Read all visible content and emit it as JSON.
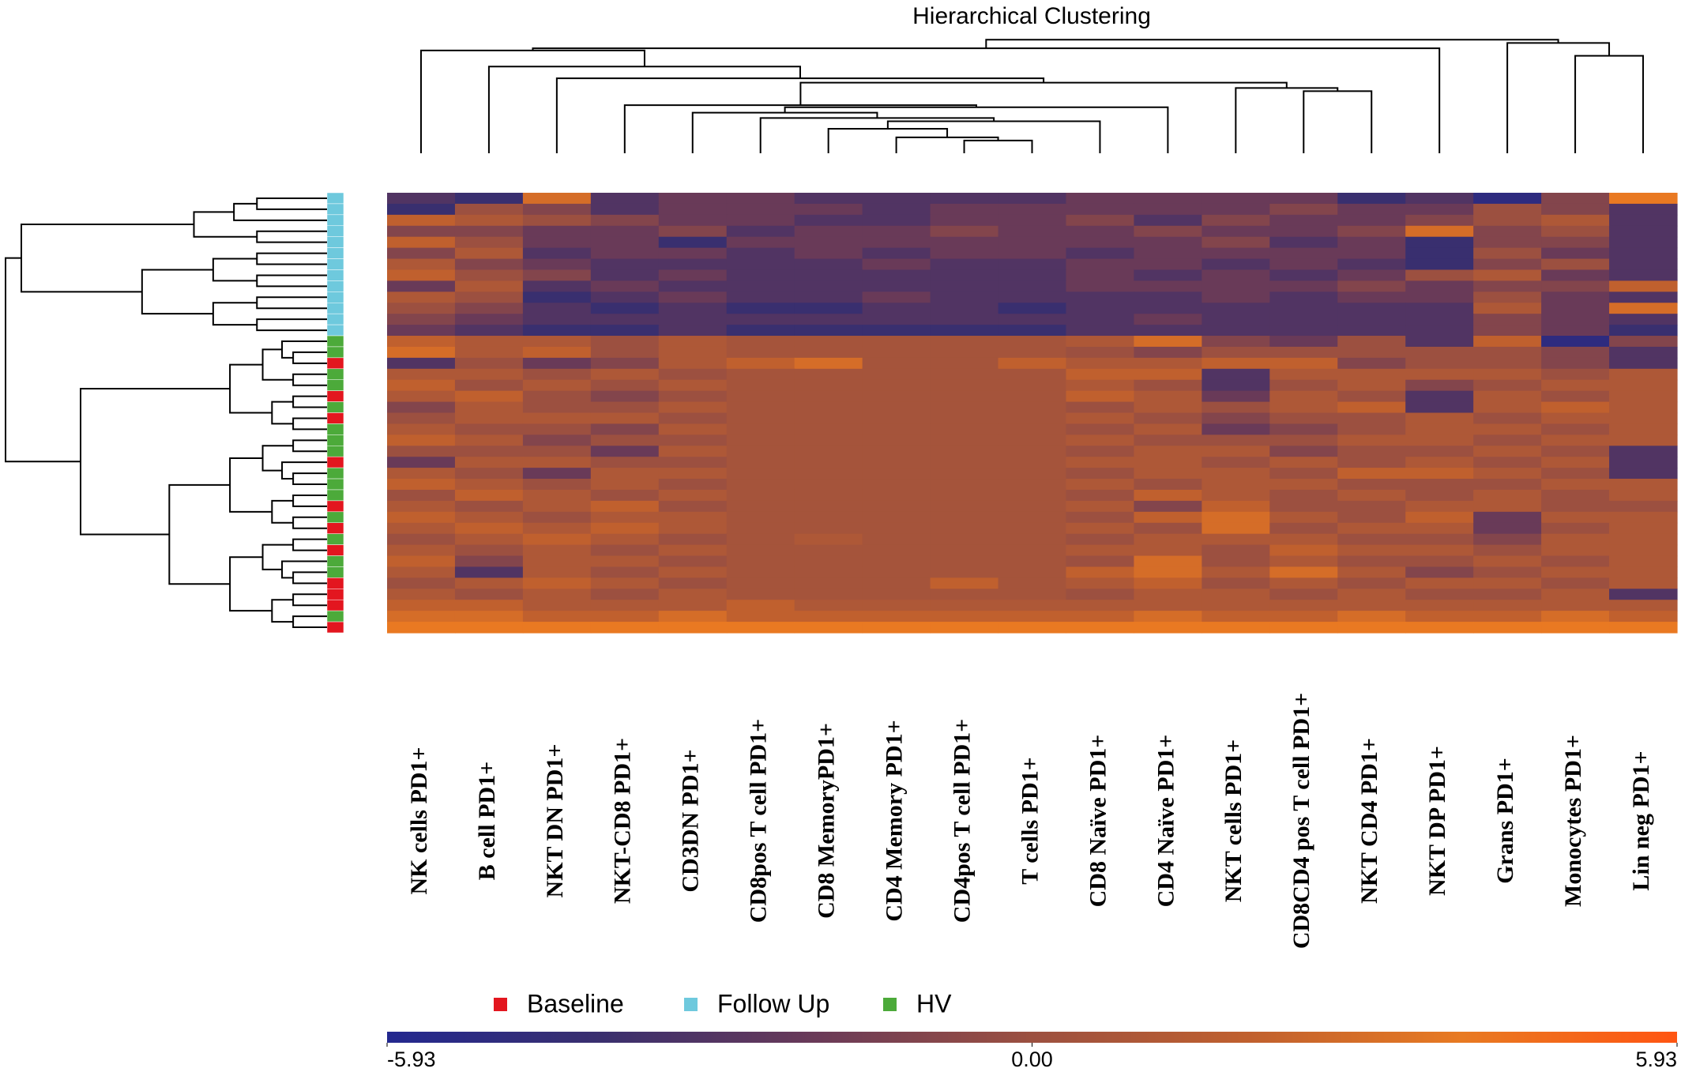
{
  "chart_data": {
    "type": "heatmap",
    "title": "Hierarchical Clustering",
    "categories": [
      "NK cells PD1+",
      "B cell PD1+",
      "NKT DN PD1+",
      "NKT-CD8 PD1+",
      "CD3DN PD1+",
      "CD8pos T cell PD1+",
      "CD8 MemoryPD1+",
      "CD4 Memory PD1+",
      "CD4pos T cell PD1+",
      "T cells PD1+",
      "CD8 Naïve PD1+",
      "CD4 Naïve PD1+",
      "NKT cells PD1+",
      "CD8CD4 pos T cell PD1+",
      "NKT CD4 PD1+",
      "NKT DP PD1+",
      "Grans PD1+",
      "Monocytes PD1+",
      "Lin neg PD1+"
    ],
    "legend": [
      {
        "name": "Baseline",
        "color": "#e3161f"
      },
      {
        "name": "Follow Up",
        "color": "#6ec9dd"
      },
      {
        "name": "HV",
        "color": "#4caa3a"
      }
    ],
    "row_groups": [
      1,
      1,
      1,
      1,
      1,
      1,
      1,
      1,
      1,
      1,
      1,
      1,
      1,
      2,
      2,
      0,
      2,
      2,
      0,
      2,
      0,
      2,
      2,
      2,
      0,
      2,
      2,
      2,
      0,
      2,
      0,
      2,
      0,
      2,
      2,
      0,
      0,
      0,
      2,
      0
    ],
    "values": [
      [
        -3,
        -4,
        3,
        -3,
        -2,
        -2,
        -3,
        -3,
        -3,
        -3,
        -2,
        -2,
        -2,
        -2,
        -4,
        -3,
        -5,
        -1,
        4
      ],
      [
        -4,
        0,
        -1,
        -3,
        -2,
        -2,
        -2,
        -3,
        -2,
        -2,
        -2,
        -2,
        -2,
        -1,
        -2,
        -2,
        0,
        -1,
        -3
      ],
      [
        2,
        1,
        0,
        -1,
        -2,
        -2,
        -3,
        -3,
        -2,
        -2,
        -1,
        -3,
        -1,
        -2,
        -2,
        -1,
        0,
        1,
        -3
      ],
      [
        -1,
        -1,
        -2,
        -2,
        -1,
        -3,
        -2,
        -2,
        -1,
        -2,
        -2,
        -1,
        -2,
        -2,
        -1,
        3,
        -1,
        0,
        -3
      ],
      [
        2,
        0,
        -2,
        -2,
        -4,
        -2,
        -2,
        -2,
        -2,
        -2,
        -2,
        -2,
        -1,
        -3,
        -2,
        -4,
        -1,
        -1,
        -3
      ],
      [
        -1,
        1,
        -3,
        -2,
        -2,
        -3,
        -2,
        -3,
        -2,
        -2,
        -3,
        -2,
        -2,
        -2,
        -2,
        -4,
        0,
        -2,
        -3
      ],
      [
        1,
        -1,
        -2,
        -3,
        -3,
        -3,
        -3,
        -2,
        -3,
        -3,
        -2,
        -2,
        -3,
        -2,
        -3,
        -4,
        -1,
        0,
        -3
      ],
      [
        2,
        0,
        -1,
        -3,
        -2,
        -3,
        -3,
        -3,
        -3,
        -3,
        -2,
        -3,
        -2,
        -3,
        -2,
        0,
        1,
        -2,
        -3
      ],
      [
        -2,
        1,
        -3,
        -2,
        -3,
        -3,
        -3,
        -3,
        -3,
        -3,
        -2,
        -2,
        -2,
        -2,
        -1,
        -2,
        -1,
        -1,
        2
      ],
      [
        1,
        0,
        -4,
        -3,
        -2,
        -3,
        -3,
        -2,
        -3,
        -3,
        -3,
        -3,
        -2,
        -3,
        -2,
        -2,
        0,
        -2,
        -3
      ],
      [
        0,
        -1,
        -3,
        -4,
        -3,
        -4,
        -4,
        -3,
        -3,
        -4,
        -3,
        -3,
        -3,
        -3,
        -3,
        -3,
        1,
        -2,
        3
      ],
      [
        -1,
        -2,
        -3,
        -3,
        -3,
        -3,
        -3,
        -3,
        -3,
        -3,
        -3,
        -2,
        -3,
        -3,
        -3,
        -3,
        -1,
        -2,
        -3
      ],
      [
        -2,
        -3,
        -4,
        -4,
        -3,
        -4,
        -4,
        -4,
        -4,
        -4,
        -3,
        -3,
        -3,
        -3,
        -3,
        -3,
        -1,
        -2,
        -4
      ],
      [
        2,
        1,
        1,
        0,
        1,
        0.5,
        0.5,
        0.5,
        0.5,
        0.5,
        1,
        3,
        -1,
        -2,
        0,
        -3,
        2,
        -5,
        -1
      ],
      [
        3,
        1,
        2,
        0,
        1,
        0.5,
        0.5,
        0.5,
        0.5,
        0.5,
        0,
        -1,
        0,
        0,
        0,
        0,
        0,
        -1,
        -3
      ],
      [
        -3,
        0,
        -2,
        -1,
        1,
        2,
        3,
        0.5,
        0.5,
        2,
        1,
        1,
        2,
        2,
        -1,
        0,
        0,
        -1,
        -3
      ],
      [
        1,
        1,
        0,
        1,
        0,
        0.5,
        0.5,
        0.5,
        0.5,
        0.5,
        2,
        2,
        -3,
        1,
        1,
        1,
        1,
        0,
        1
      ],
      [
        2,
        0,
        1,
        0,
        1,
        0.5,
        0.5,
        0.5,
        0.5,
        0.5,
        1,
        0,
        -3,
        0,
        1,
        -1,
        0,
        1,
        1
      ],
      [
        1,
        2,
        0,
        -1,
        0,
        0.5,
        0.5,
        0.5,
        0.5,
        0.5,
        2,
        1,
        -2,
        1,
        0,
        -3,
        1,
        0,
        1
      ],
      [
        -1,
        1,
        0,
        0,
        1,
        0.5,
        0.5,
        0.5,
        0.5,
        0.5,
        0,
        1,
        0,
        1,
        2,
        -3,
        1,
        2,
        1
      ],
      [
        0,
        1,
        1,
        1,
        0,
        0.5,
        0.5,
        0.5,
        0.5,
        0.5,
        1,
        0,
        -1,
        0,
        0,
        1,
        0,
        1,
        1
      ],
      [
        1,
        0,
        0,
        -1,
        1,
        0.5,
        0.5,
        0.5,
        0.5,
        0.5,
        0,
        1,
        -2,
        -1,
        0,
        1,
        1,
        0,
        1
      ],
      [
        2,
        1,
        -1,
        0,
        0,
        0.5,
        0.5,
        0.5,
        0.5,
        0.5,
        1,
        0,
        0,
        0,
        1,
        1,
        0,
        1,
        1
      ],
      [
        0,
        0,
        0,
        -2,
        1,
        0.5,
        0.5,
        0.5,
        0.5,
        0.5,
        0,
        1,
        1,
        -1,
        0,
        0,
        1,
        0,
        -3
      ],
      [
        -2,
        1,
        1,
        0,
        0,
        0.5,
        0.5,
        0.5,
        0.5,
        0.5,
        1,
        1,
        0,
        1,
        0,
        1,
        0,
        1,
        -3
      ],
      [
        1,
        0,
        -2,
        1,
        1,
        0.5,
        0.5,
        0.5,
        0.5,
        0.5,
        0,
        1,
        1,
        0,
        2,
        2,
        1,
        0,
        -3
      ],
      [
        2,
        1,
        0,
        1,
        0,
        0.5,
        0.5,
        0.5,
        0.5,
        0.5,
        1,
        0,
        1,
        1,
        0,
        0,
        0,
        1,
        1
      ],
      [
        0,
        2,
        1,
        0,
        1,
        0.5,
        0.5,
        0.5,
        0.5,
        0.5,
        0,
        2,
        1,
        0,
        1,
        0,
        1,
        0,
        1
      ],
      [
        1,
        0,
        1,
        2,
        0,
        0.5,
        0.5,
        0.5,
        0.5,
        0.5,
        1,
        -1,
        2,
        0,
        0,
        1,
        1,
        0,
        0
      ],
      [
        2,
        1,
        0,
        1,
        1,
        0.5,
        0.5,
        0.5,
        0.5,
        0.5,
        0,
        2,
        3,
        1,
        0,
        2,
        -2,
        1,
        1
      ],
      [
        1,
        2,
        1,
        2,
        1,
        0.5,
        0.5,
        0.5,
        0.5,
        0.5,
        1,
        0,
        3,
        0,
        1,
        1,
        -2,
        0,
        1
      ],
      [
        0,
        1,
        2,
        1,
        0,
        0.5,
        1,
        0.5,
        0.5,
        0.5,
        0,
        1,
        1,
        1,
        0,
        0,
        -1,
        1,
        1
      ],
      [
        1,
        0,
        1,
        0,
        1,
        0.5,
        0.5,
        0.5,
        0.5,
        0.5,
        1,
        1,
        0,
        2,
        1,
        1,
        0,
        1,
        1
      ],
      [
        2,
        -1,
        1,
        1,
        0,
        0.5,
        0.5,
        0.5,
        0.5,
        0.5,
        0,
        3,
        0,
        1,
        0,
        0,
        1,
        0,
        1
      ],
      [
        1,
        -3,
        1,
        0,
        1,
        0.5,
        0.5,
        0.5,
        0.5,
        0.5,
        2,
        3,
        1,
        3,
        1,
        -1,
        0,
        1,
        1
      ],
      [
        0,
        1,
        2,
        1,
        0,
        0.5,
        0.5,
        0.5,
        2,
        0.5,
        1,
        2,
        0,
        1,
        0,
        1,
        1,
        0,
        1
      ],
      [
        1,
        0,
        1,
        0,
        1,
        0.5,
        0.5,
        0.5,
        0.5,
        0.5,
        0,
        1,
        1,
        0,
        1,
        0,
        0,
        1,
        -3
      ],
      [
        2,
        2,
        1,
        1,
        1,
        2,
        1,
        1,
        1,
        1,
        1,
        1,
        1,
        1,
        1,
        1,
        1,
        1,
        1
      ],
      [
        3,
        3,
        2,
        2,
        3,
        2,
        2,
        2,
        2,
        2,
        2,
        3,
        2,
        2,
        3,
        2,
        2,
        3,
        2
      ],
      [
        4,
        4,
        4,
        4,
        4,
        4,
        4,
        4,
        4,
        4,
        4,
        4,
        4,
        4,
        4,
        4,
        4,
        4,
        4
      ]
    ],
    "colormap": [
      "#23288f",
      "#3a2f6e",
      "#6a3a58",
      "#9c5040",
      "#c0602e",
      "#e87a22",
      "#ff5512"
    ],
    "zlim": [
      -5.93,
      5.93
    ],
    "zticks": [
      -5.93,
      {
        "value": 0,
        "label": "0.00"
      },
      5.93
    ]
  }
}
